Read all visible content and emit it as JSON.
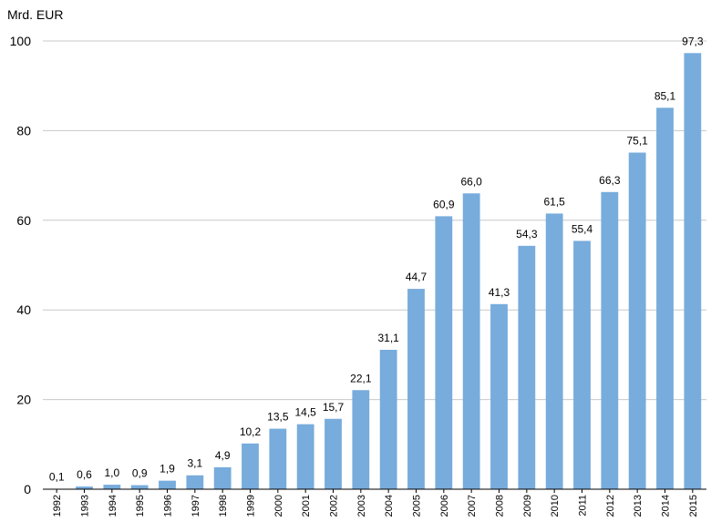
{
  "chart_data": {
    "type": "bar",
    "ylabel": "Mrd. EUR",
    "xlabel": "",
    "ylim": [
      0,
      100
    ],
    "yticks": [
      0,
      20,
      40,
      60,
      80,
      100
    ],
    "grid": true,
    "colors": {
      "bar": "#77acdc",
      "grid": "#c8c8c8"
    },
    "categories": [
      "1992",
      "1993",
      "1994",
      "1995",
      "1996",
      "1997",
      "1998",
      "1999",
      "2000",
      "2001",
      "2002",
      "2003",
      "2004",
      "2005",
      "2006",
      "2007",
      "2008",
      "2009",
      "2010",
      "2011",
      "2012",
      "2013",
      "2014",
      "2015"
    ],
    "values": [
      0.1,
      0.6,
      1.0,
      0.9,
      1.9,
      3.1,
      4.9,
      10.2,
      13.5,
      14.5,
      15.7,
      22.1,
      31.1,
      44.7,
      60.9,
      66.0,
      41.3,
      54.3,
      61.5,
      55.4,
      66.3,
      75.1,
      85.1,
      97.3
    ],
    "value_labels": [
      "0,1",
      "0,6",
      "1,0",
      "0,9",
      "1,9",
      "3,1",
      "4,9",
      "10,2",
      "13,5",
      "14,5",
      "15,7",
      "22,1",
      "31,1",
      "44,7",
      "60,9",
      "66,0",
      "41,3",
      "54,3",
      "61,5",
      "55,4",
      "66,3",
      "75,1",
      "85,1",
      "97,3"
    ]
  }
}
